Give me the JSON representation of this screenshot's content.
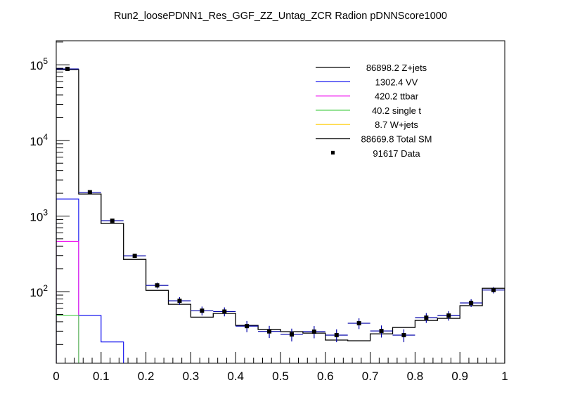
{
  "chart_data": {
    "type": "line",
    "title": "Run2_loosePDNN1_Res_GGF_ZZ_Untag_ZCR Radion  pDNNScore1000",
    "xlabel": "",
    "ylabel": "",
    "xlim": [
      0,
      1
    ],
    "ylim": [
      11.3,
      208000
    ],
    "yscale": "log",
    "grid": false,
    "legend_placement": "top-right",
    "bin_edges": [
      0,
      0.05,
      0.1,
      0.15,
      0.2,
      0.25,
      0.3,
      0.35,
      0.4,
      0.45,
      0.5,
      0.55,
      0.6,
      0.65,
      0.7,
      0.75,
      0.8,
      0.85,
      0.9,
      0.95,
      1.0
    ],
    "x_tick_labels": [
      "0",
      "0.1",
      "0.2",
      "0.3",
      "0.4",
      "0.5",
      "0.6",
      "0.7",
      "0.8",
      "0.9",
      "1"
    ],
    "y_tick_labels": [
      {
        "base": "10",
        "exp": "2"
      },
      {
        "base": "10",
        "exp": "3"
      },
      {
        "base": "10",
        "exp": "4"
      },
      {
        "base": "10",
        "exp": "5"
      }
    ],
    "series": [
      {
        "name": "Z+jets",
        "legend": "86898.2 Z+jets",
        "color": "#000000",
        "values": []
      },
      {
        "name": "VV",
        "legend": "1302.4 VV",
        "color": "#0000ee",
        "values": [
          1683,
          48.3,
          21.6,
          5,
          0,
          0,
          0,
          0,
          0,
          0,
          0,
          0,
          0,
          0,
          0,
          0,
          0,
          0,
          0,
          0
        ]
      },
      {
        "name": "ttbar",
        "legend": "420.2 ttbar",
        "color": "#ee00ee",
        "values": [
          463,
          0,
          0,
          0,
          0,
          0,
          0,
          0,
          0,
          0,
          0,
          0,
          0,
          0,
          0,
          0,
          0,
          0,
          0,
          0
        ]
      },
      {
        "name": "single t",
        "legend": "40.2 single t",
        "color": "#44cc44",
        "values": [
          48.3,
          0,
          0,
          0,
          0,
          0,
          0,
          0,
          0,
          0,
          0,
          0,
          0,
          0,
          0,
          0,
          0,
          0,
          0,
          0
        ]
      },
      {
        "name": "W+jets",
        "legend": "8.7 W+jets",
        "color": "#ffcc00",
        "values": [
          8,
          0,
          0,
          0,
          0,
          0,
          0,
          0,
          0,
          0,
          0,
          0,
          0,
          0,
          0,
          0,
          0,
          0,
          0,
          0
        ]
      },
      {
        "name": "Total SM",
        "legend": "88669.8 Total SM",
        "color": "#000000",
        "values": [
          86500,
          1955,
          796,
          267,
          104,
          68,
          46,
          51.5,
          35.8,
          31.6,
          29.6,
          28.3,
          22.9,
          22.4,
          27.7,
          33.6,
          41.6,
          44.3,
          65.2,
          111
        ]
      }
    ],
    "data_points": {
      "name": "Data",
      "legend": "91617 Data",
      "color": "#000000",
      "error_color": "#0000aa",
      "values": [
        88300,
        2065,
        867,
        298,
        121,
        75.7,
        56,
        54.5,
        35,
        29.8,
        27.2,
        29.6,
        26.6,
        38.2,
        30.2,
        26.6,
        45.3,
        48.3,
        71,
        105
      ]
    }
  }
}
